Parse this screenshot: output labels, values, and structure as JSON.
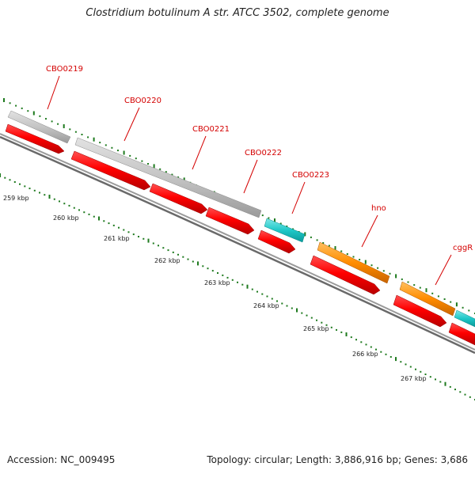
{
  "title": "Clostridium botulinum A str. ATCC 3502, complete genome",
  "footer": {
    "accession": "Accession: NC_009495",
    "summary": "Topology: circular; Length: 3,886,916 bp; Genes: 3,686"
  },
  "colors": {
    "cds_forward": "#ff0000",
    "gene_gray": "#bdbdbd",
    "gene_cyan": "#1fc8c8",
    "gene_orange": "#ff8c00",
    "backbone": "#7f7f7f",
    "ticks": "#1e7a1e",
    "label_text": "#d40000"
  },
  "scale": {
    "unit": "kbp",
    "ticks": [
      {
        "value": 259,
        "label": "259 kbp"
      },
      {
        "value": 260,
        "label": "260 kbp"
      },
      {
        "value": 261,
        "label": "261 kbp"
      },
      {
        "value": 262,
        "label": "262 kbp"
      },
      {
        "value": 263,
        "label": "263 kbp"
      },
      {
        "value": 264,
        "label": "264 kbp"
      },
      {
        "value": 265,
        "label": "265 kbp"
      },
      {
        "value": 266,
        "label": "266 kbp"
      },
      {
        "value": 267,
        "label": "267 kbp"
      }
    ]
  },
  "gene_labels": [
    "CBO0219",
    "CBO0220",
    "CBO0221",
    "CBO0222",
    "CBO0223",
    "hno",
    "cggR"
  ]
}
